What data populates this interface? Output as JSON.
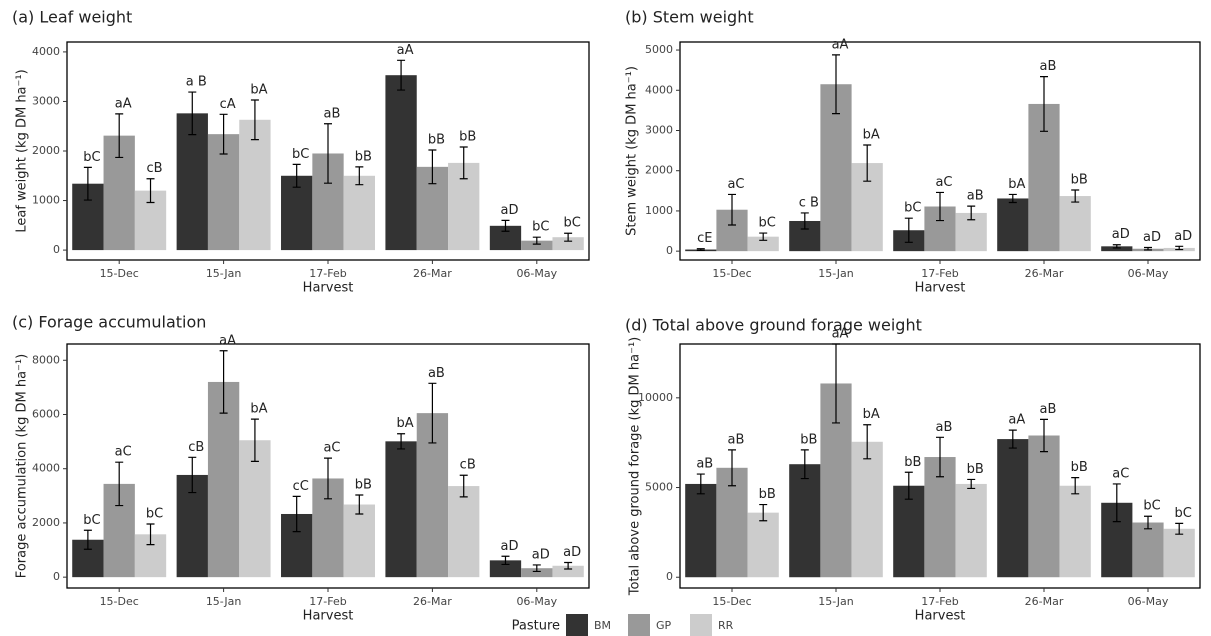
{
  "chart_data": [
    {
      "type": "bar",
      "title": "(a) Leaf weight",
      "x_label": "Harvest",
      "y_label": "Leaf weight (kg DM ha⁻¹)",
      "categories": [
        "15-Dec",
        "15-Jan",
        "17-Feb",
        "26-Mar",
        "06-May"
      ],
      "ylim": [
        -200,
        4200
      ],
      "yticks": [
        0,
        1000,
        2000,
        3000,
        4000
      ],
      "legend_title": "Pasture",
      "series": [
        {
          "name": "BM",
          "color": "#333333",
          "values": [
            1340,
            2760,
            1500,
            3530,
            490
          ],
          "errors": [
            330,
            430,
            230,
            300,
            110
          ],
          "letters": [
            "bC",
            "a B",
            "bC",
            "aA",
            "aD"
          ]
        },
        {
          "name": "GP",
          "color": "#999999",
          "values": [
            2310,
            2340,
            1950,
            1680,
            190
          ],
          "errors": [
            440,
            400,
            600,
            340,
            70
          ],
          "letters": [
            "aA",
            "cA",
            "aB",
            "bB",
            "bC"
          ]
        },
        {
          "name": "RR",
          "color": "#cccccc",
          "values": [
            1200,
            2630,
            1500,
            1760,
            260
          ],
          "errors": [
            240,
            400,
            180,
            320,
            80
          ],
          "letters": [
            "cB",
            "bA",
            "bB",
            "bB",
            "bC"
          ]
        }
      ]
    },
    {
      "type": "bar",
      "title": "(b) Stem weight",
      "x_label": "Harvest",
      "y_label": "Stem weight (kg DM ha⁻¹)",
      "categories": [
        "15-Dec",
        "15-Jan",
        "17-Feb",
        "26-Mar",
        "06-May"
      ],
      "ylim": [
        -220,
        5200
      ],
      "yticks": [
        0,
        1000,
        2000,
        3000,
        4000,
        5000
      ],
      "series": [
        {
          "name": "BM",
          "color": "#333333",
          "values": [
            40,
            750,
            520,
            1310,
            120
          ],
          "errors": [
            20,
            200,
            300,
            100,
            40
          ],
          "letters": [
            "cE",
            "c B",
            "bC",
            "bA",
            "aD"
          ]
        },
        {
          "name": "GP",
          "color": "#999999",
          "values": [
            1030,
            4150,
            1110,
            3660,
            60
          ],
          "errors": [
            380,
            730,
            350,
            680,
            30
          ],
          "letters": [
            "aC",
            "aA",
            "aC",
            "aB",
            "aD"
          ]
        },
        {
          "name": "RR",
          "color": "#cccccc",
          "values": [
            360,
            2190,
            950,
            1370,
            80
          ],
          "errors": [
            90,
            450,
            170,
            150,
            40
          ],
          "letters": [
            "bC",
            "bA",
            "aB",
            "bB",
            "aD"
          ]
        }
      ]
    },
    {
      "type": "bar",
      "title": "(c) Forage accumulation",
      "x_label": "Harvest",
      "y_label": "Forage accumulation (kg DM ha⁻¹)",
      "categories": [
        "15-Dec",
        "15-Jan",
        "17-Feb",
        "26-Mar",
        "06-May"
      ],
      "ylim": [
        -400,
        8600
      ],
      "yticks": [
        0,
        2000,
        4000,
        6000,
        8000
      ],
      "series": [
        {
          "name": "BM",
          "color": "#333333",
          "values": [
            1380,
            3770,
            2330,
            5010,
            620
          ],
          "errors": [
            350,
            650,
            650,
            280,
            150
          ],
          "letters": [
            "bC",
            "cB",
            "cC",
            "bA",
            "aD"
          ]
        },
        {
          "name": "GP",
          "color": "#999999",
          "values": [
            3440,
            7200,
            3640,
            6050,
            330
          ],
          "errors": [
            800,
            1150,
            750,
            1100,
            120
          ],
          "letters": [
            "aC",
            "aA",
            "aC",
            "aB",
            "aD"
          ]
        },
        {
          "name": "RR",
          "color": "#cccccc",
          "values": [
            1580,
            5050,
            2680,
            3360,
            420
          ],
          "errors": [
            380,
            780,
            350,
            400,
            120
          ],
          "letters": [
            "bC",
            "bA",
            "bB",
            "cB",
            "aD"
          ]
        }
      ]
    },
    {
      "type": "bar",
      "title": "(d) Total above ground forage weight",
      "x_label": "Harvest",
      "y_label": "Total above ground forage (kg DM ha⁻¹)",
      "categories": [
        "15-Dec",
        "15-Jan",
        "17-Feb",
        "26-Mar",
        "06-May"
      ],
      "ylim": [
        -600,
        13000
      ],
      "yticks": [
        0,
        5000,
        10000
      ],
      "series": [
        {
          "name": "BM",
          "color": "#333333",
          "values": [
            5200,
            6300,
            5100,
            7700,
            4150
          ],
          "errors": [
            550,
            800,
            750,
            500,
            1050
          ],
          "letters": [
            "aB",
            "bB",
            "bB",
            "aA",
            "aC"
          ]
        },
        {
          "name": "GP",
          "color": "#999999",
          "values": [
            6100,
            10800,
            6700,
            7900,
            3050
          ],
          "errors": [
            1000,
            2200,
            1100,
            900,
            350
          ],
          "letters": [
            "aB",
            "aA",
            "aB",
            "aB",
            "bC"
          ]
        },
        {
          "name": "RR",
          "color": "#cccccc",
          "values": [
            3600,
            7550,
            5200,
            5100,
            2700
          ],
          "errors": [
            450,
            950,
            250,
            450,
            300
          ],
          "letters": [
            "bB",
            "bA",
            "bB",
            "bB",
            "bC"
          ]
        }
      ]
    }
  ]
}
